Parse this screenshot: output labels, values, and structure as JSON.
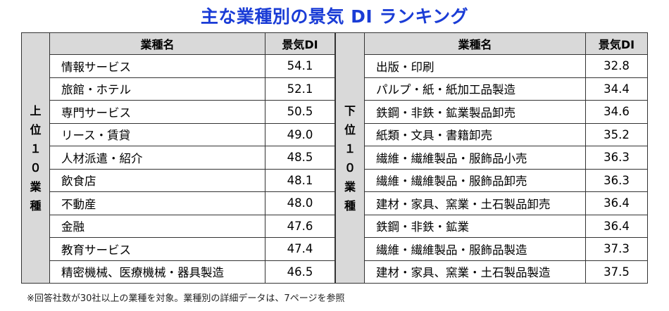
{
  "title": "主な業種別の景気 DI ランキング",
  "top": {
    "side_label": [
      "上",
      "位",
      "１",
      "０",
      "業",
      "種"
    ],
    "header_name": "業種名",
    "header_di": "景気DI",
    "rows": [
      {
        "name": "情報サービス",
        "di": "54.1"
      },
      {
        "name": "旅館・ホテル",
        "di": "52.1"
      },
      {
        "name": "専門サービス",
        "di": "50.5"
      },
      {
        "name": "リース・賃貸",
        "di": "49.0"
      },
      {
        "name": "人材派遣・紹介",
        "di": "48.5"
      },
      {
        "name": "飲食店",
        "di": "48.1"
      },
      {
        "name": "不動産",
        "di": "48.0"
      },
      {
        "name": "金融",
        "di": "47.6"
      },
      {
        "name": "教育サービス",
        "di": "47.4"
      },
      {
        "name": "精密機械、医療機械・器具製造",
        "di": "46.5"
      }
    ]
  },
  "bottom": {
    "side_label": [
      "下",
      "位",
      "１",
      "０",
      "業",
      "種"
    ],
    "header_name": "業種名",
    "header_di": "景気DI",
    "rows": [
      {
        "name": "出版・印刷",
        "di": "32.8"
      },
      {
        "name": "パルプ・紙・紙加工品製造",
        "di": "34.4"
      },
      {
        "name": "鉄鋼・非鉄・鉱業製品卸売",
        "di": "34.6"
      },
      {
        "name": "紙類・文具・書籍卸売",
        "di": "35.2"
      },
      {
        "name": "繊維・繊維製品・服飾品小売",
        "di": "36.3"
      },
      {
        "name": "繊維・繊維製品・服飾品卸売",
        "di": "36.3"
      },
      {
        "name": "建材・家具、窯業・土石製品卸売",
        "di": "36.4"
      },
      {
        "name": "鉄鋼・非鉄・鉱業",
        "di": "36.4"
      },
      {
        "name": "繊維・繊維製品・服飾品製造",
        "di": "37.3"
      },
      {
        "name": "建材・家具、窯業・土石製品製造",
        "di": "37.5"
      }
    ]
  },
  "note": "※回答社数が30社以上の業種を対象。業種別の詳細データは、7ページを参照"
}
